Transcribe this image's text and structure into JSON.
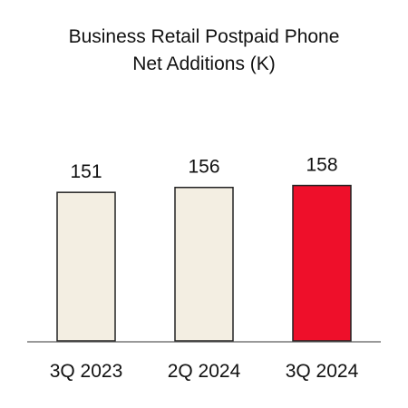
{
  "chart_data": {
    "type": "bar",
    "title": "Business Retail Postpaid Phone Net Additions (K)",
    "categories": [
      "3Q 2023",
      "2Q 2024",
      "3Q 2024"
    ],
    "values": [
      151,
      156,
      158
    ],
    "colors": [
      "#f3eee2",
      "#f3eee2",
      "#ee0f2a"
    ]
  }
}
